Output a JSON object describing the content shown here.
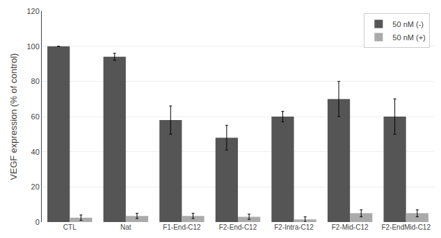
{
  "chart_data": {
    "type": "bar",
    "categories": [
      "CTL",
      "Nat",
      "F1-End-C12",
      "F2-End-C12",
      "F2-Intra-C12",
      "F2-Mid-C12",
      "F2-EndMid-C12"
    ],
    "series": [
      {
        "name": "50 nM (-)",
        "color": "#555555",
        "values": [
          100,
          94,
          58,
          48,
          60,
          70,
          60
        ],
        "errors": [
          0,
          2,
          8,
          7,
          3,
          10,
          10
        ]
      },
      {
        "name": "50 nM (+)",
        "color": "#aaaaaa",
        "values": [
          2.5,
          3.5,
          3.5,
          3.0,
          1.5,
          5.0,
          5.0
        ],
        "errors": [
          1.5,
          1.5,
          1.5,
          1.5,
          1.5,
          2.0,
          2.0
        ]
      }
    ],
    "ylabel": "VEGF expression (% of control)",
    "ylim": [
      0,
      120
    ],
    "yticks": [
      0,
      20,
      40,
      60,
      80,
      100,
      120
    ],
    "grid": true,
    "legend": "upper right"
  }
}
